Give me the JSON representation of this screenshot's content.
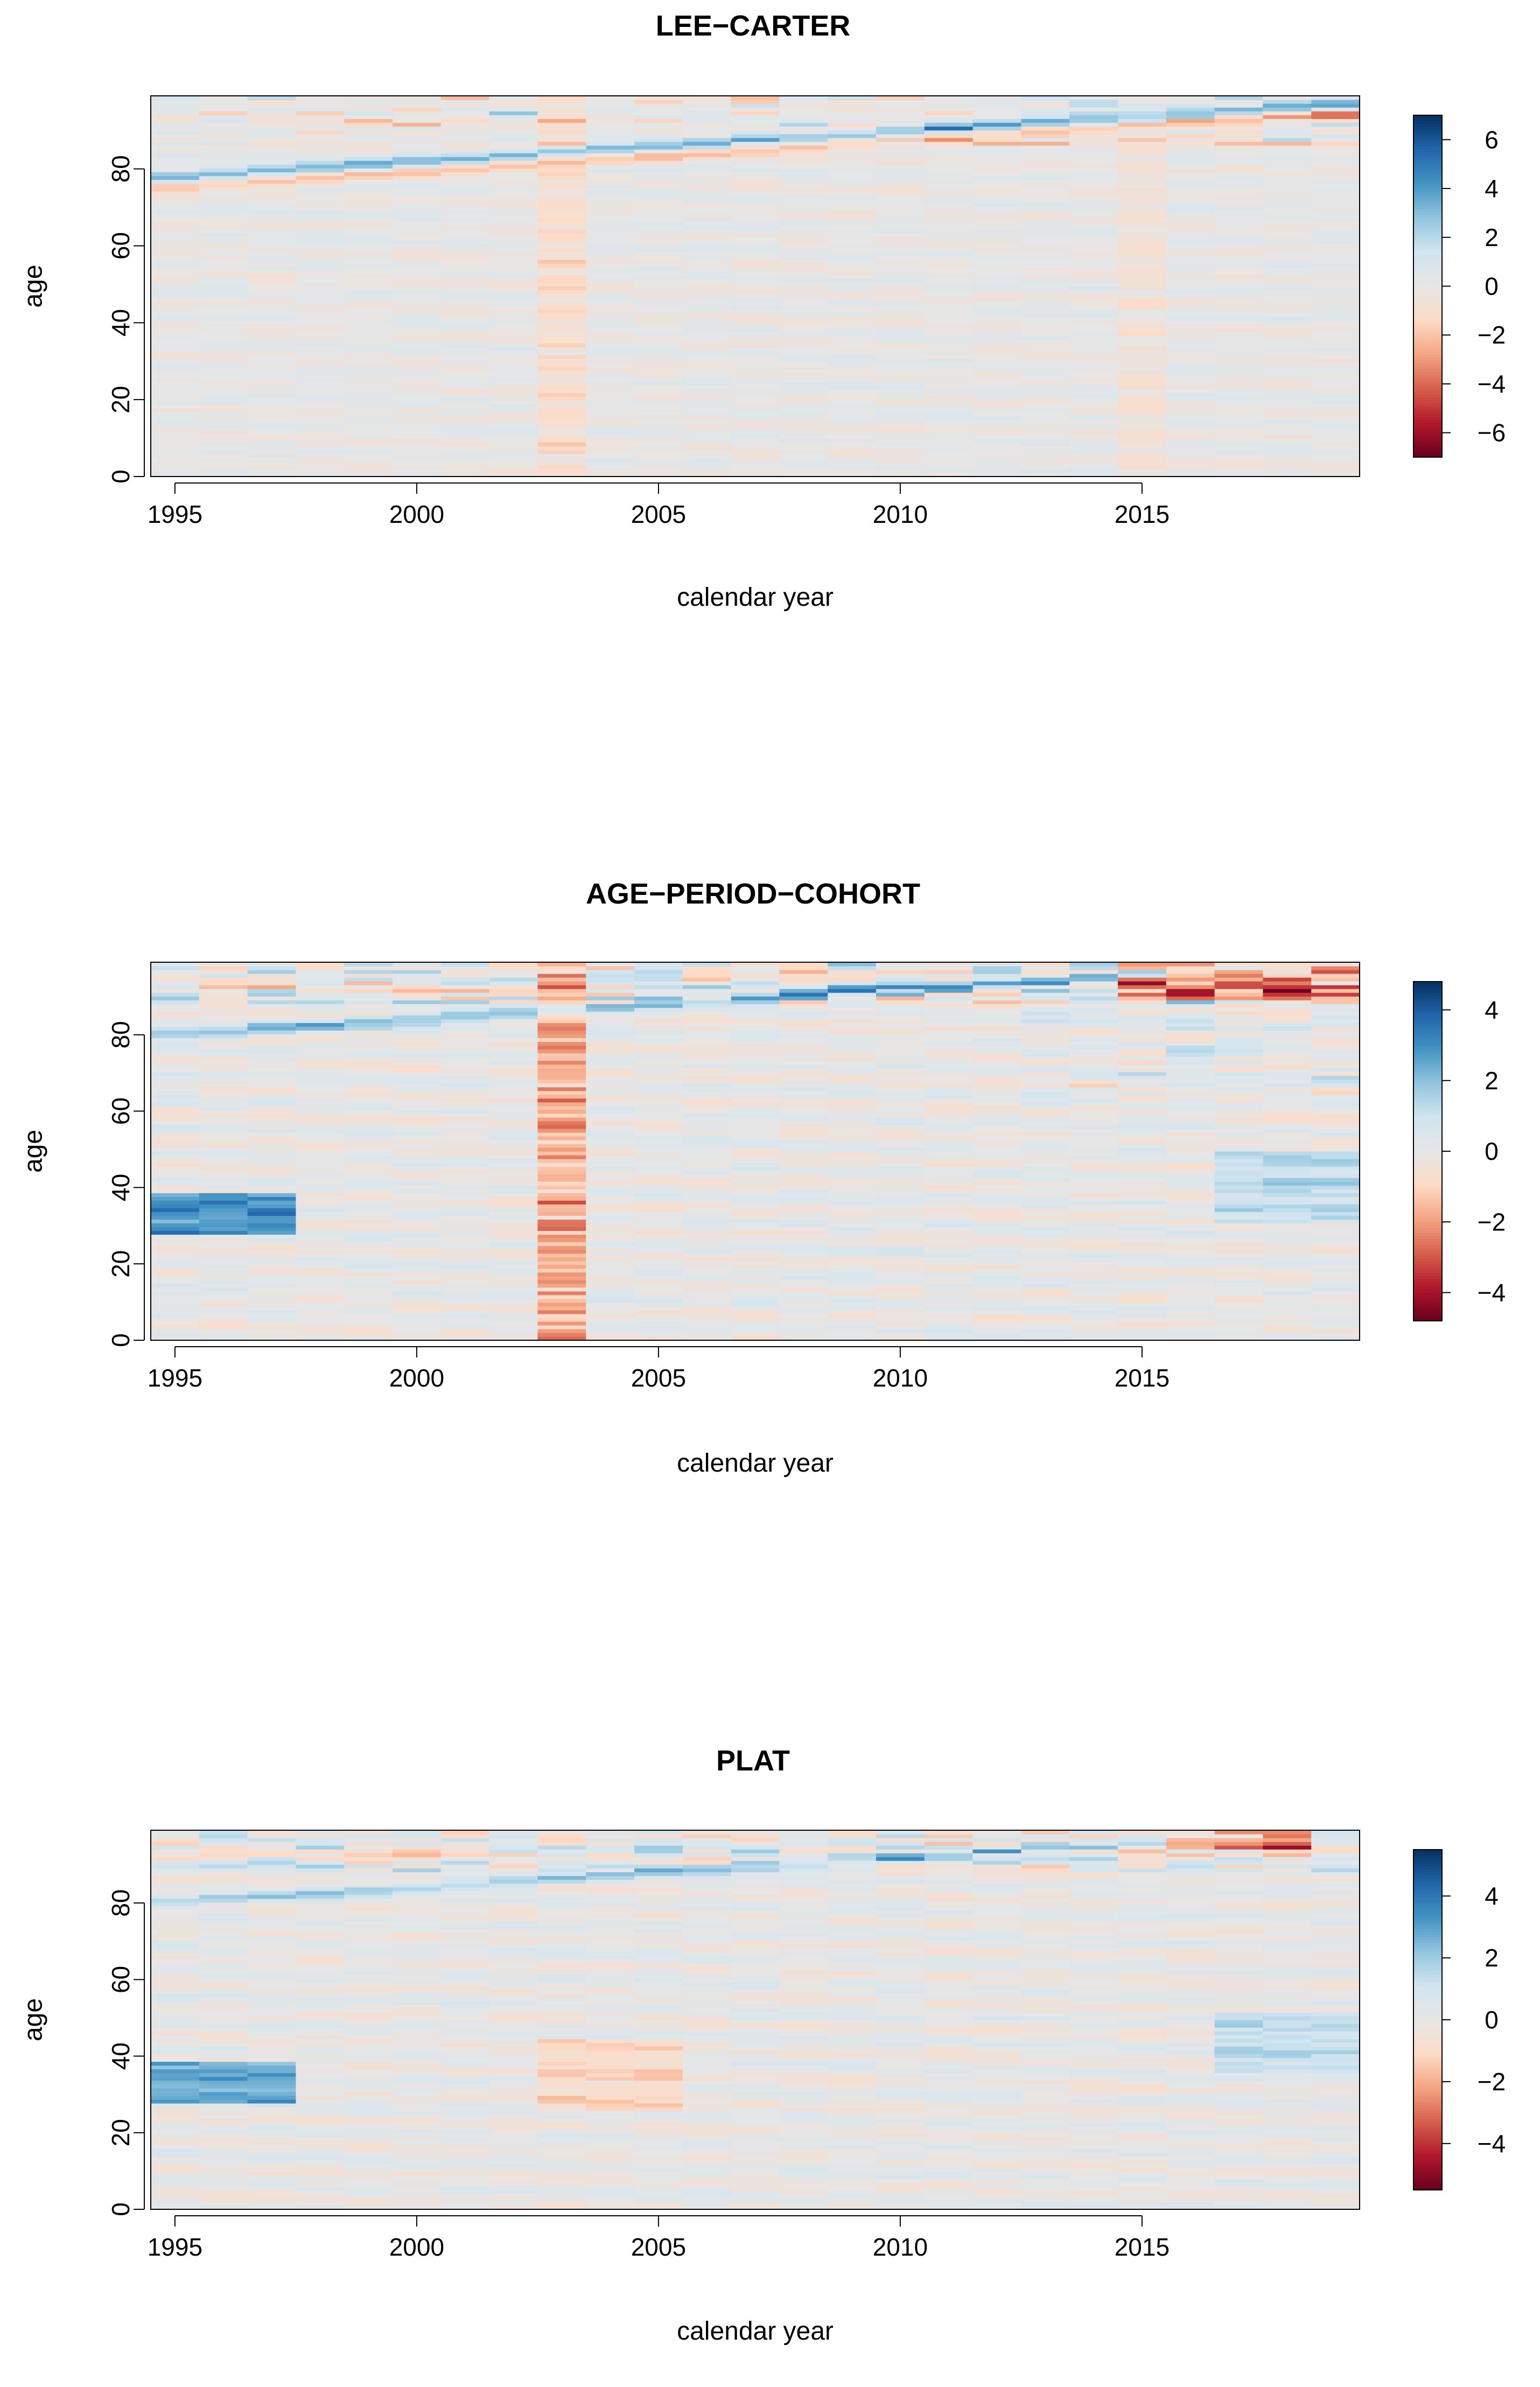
{
  "chart_data": [
    {
      "type": "heatmap",
      "title": "LEE−CARTER",
      "xlabel": "calendar year",
      "ylabel": "age",
      "x_range": [
        1994.5,
        2019.5
      ],
      "y_range": [
        0,
        99
      ],
      "x_ticks": [
        1995,
        2000,
        2005,
        2010,
        2015
      ],
      "x_tick_labels": [
        "1995",
        "2000",
        "2005",
        "2010",
        "2015"
      ],
      "y_ticks": [
        0,
        20,
        40,
        60,
        80
      ],
      "y_tick_labels": [
        "0",
        "20",
        "40",
        "60",
        "80"
      ],
      "colorbar": {
        "min": -7,
        "max": 7,
        "ticks": [
          6,
          4,
          2,
          0,
          -2,
          -4,
          -6
        ],
        "tick_labels": [
          "6",
          "4",
          "2",
          "0",
          "−2",
          "−4",
          "−6"
        ]
      },
      "colors": [
        "#67001f",
        "#b2182b",
        "#d6604d",
        "#f4a582",
        "#fddbc7",
        "#e6e6e6",
        "#d1e5f0",
        "#92c5de",
        "#4393c3",
        "#2166ac",
        "#053061"
      ],
      "features": [
        {
          "desc": "diagonal band near age 75-95",
          "year0": 1994.5,
          "age0": 78,
          "slope": 0.8,
          "value": 3.5
        },
        {
          "desc": "negative band below diagonal",
          "year0": 1994.5,
          "age0": 75,
          "slope": 0.8,
          "value": -2.2
        },
        {
          "desc": "2003 negative column",
          "year": 2003,
          "value": -1.0
        },
        {
          "desc": "2015 negative column",
          "year": 2015,
          "value": -0.6
        }
      ]
    },
    {
      "type": "heatmap",
      "title": "AGE−PERIOD−COHORT",
      "xlabel": "calendar year",
      "ylabel": "age",
      "x_range": [
        1994.5,
        2019.5
      ],
      "y_range": [
        0,
        99
      ],
      "x_ticks": [
        1995,
        2000,
        2005,
        2010,
        2015
      ],
      "x_tick_labels": [
        "1995",
        "2000",
        "2005",
        "2010",
        "2015"
      ],
      "y_ticks": [
        0,
        20,
        40,
        60,
        80
      ],
      "y_tick_labels": [
        "0",
        "20",
        "40",
        "60",
        "80"
      ],
      "colorbar": {
        "min": -4.8,
        "max": 4.8,
        "ticks": [
          4,
          2,
          0,
          -2,
          -4
        ],
        "tick_labels": [
          "4",
          "2",
          "0",
          "−2",
          "−4"
        ]
      },
      "colors": [
        "#67001f",
        "#b2182b",
        "#d6604d",
        "#f4a582",
        "#fddbc7",
        "#e6e6e6",
        "#d1e5f0",
        "#92c5de",
        "#4393c3",
        "#2166ac",
        "#053061"
      ],
      "features": [
        {
          "desc": "positive block ages 28-38",
          "years": [
            1995,
            1997
          ],
          "ages": [
            28,
            38
          ],
          "value": 3.5
        },
        {
          "desc": "2003 negative column",
          "year": 2003,
          "value": -1.8
        },
        {
          "desc": "diagonal cohort band",
          "year0": 1994.5,
          "age0": 80,
          "slope": 0.8,
          "value": 2.5
        },
        {
          "desc": "top-right negative",
          "years": [
            2015,
            2019
          ],
          "ages": [
            90,
            99
          ],
          "value": -3
        }
      ]
    },
    {
      "type": "heatmap",
      "title": "PLAT",
      "xlabel": "calendar year",
      "ylabel": "age",
      "x_range": [
        1994.5,
        2019.5
      ],
      "y_range": [
        0,
        99
      ],
      "x_ticks": [
        1995,
        2000,
        2005,
        2010,
        2015
      ],
      "x_tick_labels": [
        "1995",
        "2000",
        "2005",
        "2010",
        "2015"
      ],
      "y_ticks": [
        0,
        20,
        40,
        60,
        80
      ],
      "y_tick_labels": [
        "0",
        "20",
        "40",
        "60",
        "80"
      ],
      "colorbar": {
        "min": -5.5,
        "max": 5.5,
        "ticks": [
          4,
          2,
          0,
          -2,
          -4
        ],
        "tick_labels": [
          "4",
          "2",
          "0",
          "−2",
          "−4"
        ]
      },
      "colors": [
        "#67001f",
        "#b2182b",
        "#d6604d",
        "#f4a582",
        "#fddbc7",
        "#e6e6e6",
        "#d1e5f0",
        "#92c5de",
        "#4393c3",
        "#2166ac",
        "#053061"
      ],
      "features": [
        {
          "desc": "positive block ages 28-38",
          "years": [
            1995,
            1997
          ],
          "ages": [
            28,
            38
          ],
          "value": 3.2
        },
        {
          "desc": "diagonal cohort band",
          "year0": 1994.5,
          "age0": 80,
          "slope": 0.8,
          "value": 2.2
        },
        {
          "desc": "top-right negative",
          "years": [
            2016,
            2018
          ],
          "ages": [
            95,
            99
          ],
          "value": -3.5
        }
      ]
    }
  ]
}
